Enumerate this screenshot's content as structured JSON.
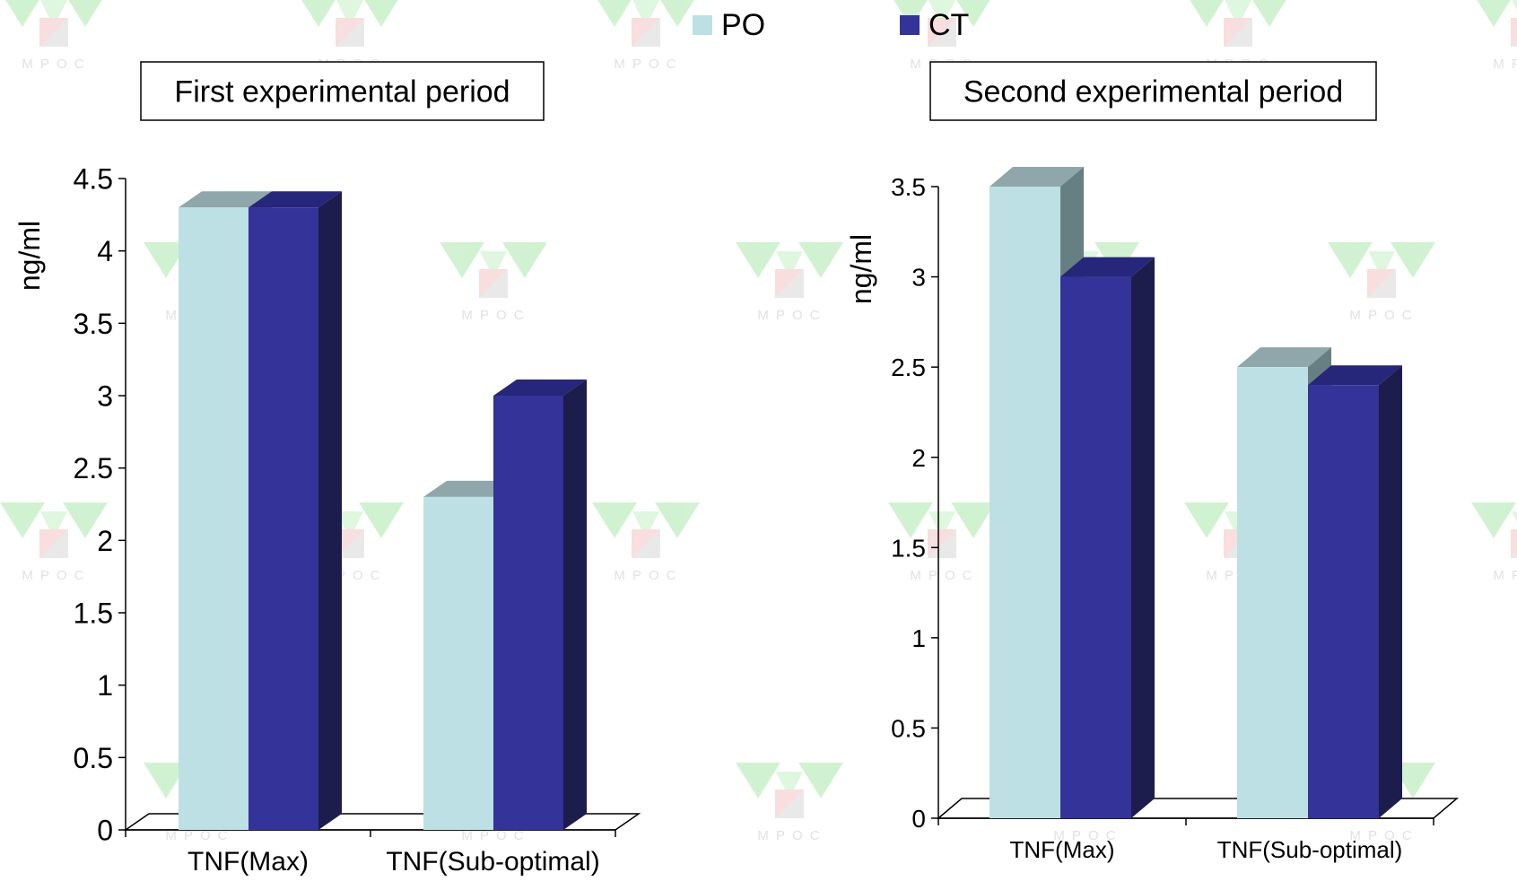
{
  "legend": {
    "placement": "top-center",
    "items": [
      {
        "label": "PO",
        "color": "#BDE0E4"
      },
      {
        "label": "CT",
        "color": "#333399"
      }
    ]
  },
  "watermark": {
    "text": "M P O C"
  },
  "chart_data": [
    {
      "type": "bar",
      "title": "First experimental period",
      "ylabel": "ng/ml",
      "xlabel": "",
      "ylim": [
        0,
        4.5
      ],
      "yticks": [
        "0",
        "0.5",
        "1",
        "1.5",
        "2",
        "2.5",
        "3",
        "3.5",
        "4",
        "4.5"
      ],
      "categories": [
        "TNF(Max)",
        "TNF(Sub-optimal)"
      ],
      "series": [
        {
          "name": "PO",
          "values": [
            4.3,
            2.3
          ]
        },
        {
          "name": "CT",
          "values": [
            4.3,
            3.0
          ]
        }
      ],
      "style": "3d-clustered"
    },
    {
      "type": "bar",
      "title": "Second experimental period",
      "ylabel": "ng/ml",
      "xlabel": "",
      "ylim": [
        0,
        3.5
      ],
      "yticks": [
        "0",
        "0.5",
        "1",
        "1.5",
        "2",
        "2.5",
        "3",
        "3.5"
      ],
      "categories": [
        "TNF(Max)",
        "TNF(Sub-optimal)"
      ],
      "series": [
        {
          "name": "PO",
          "values": [
            3.5,
            2.5
          ]
        },
        {
          "name": "CT",
          "values": [
            3.0,
            2.4
          ]
        }
      ],
      "style": "3d-clustered"
    }
  ]
}
